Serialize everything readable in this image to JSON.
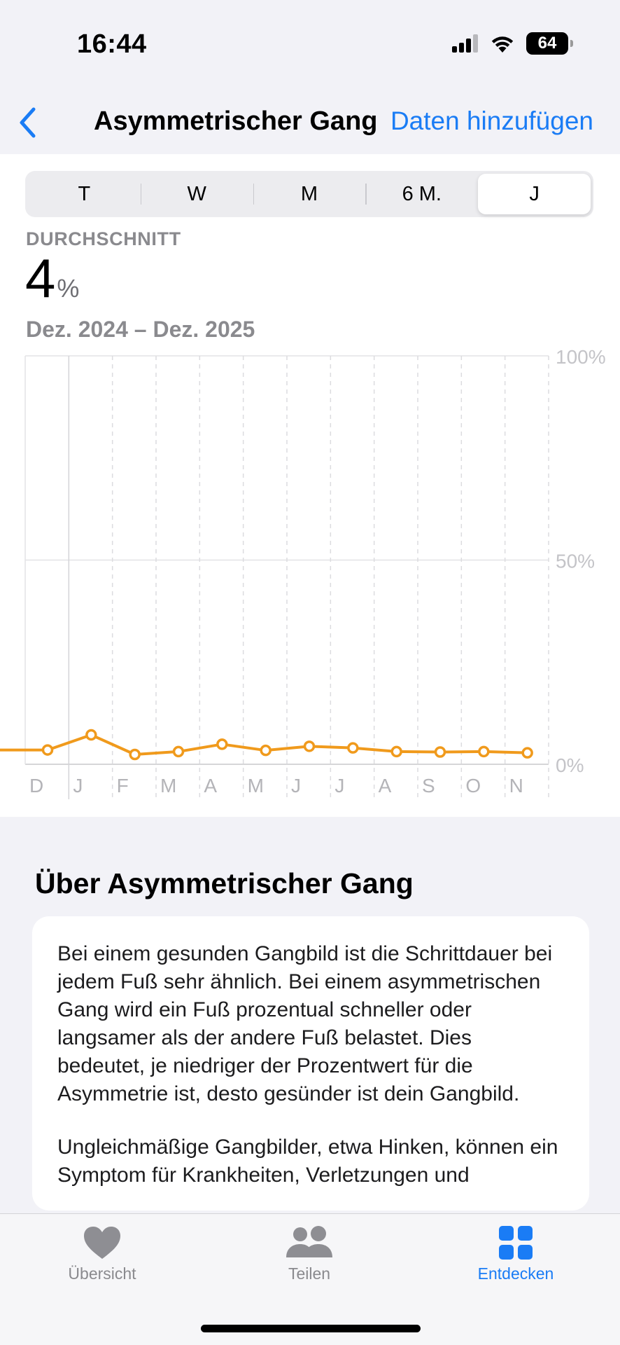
{
  "status": {
    "time": "16:44",
    "battery": "64"
  },
  "nav": {
    "back_icon": "chevron-left-icon",
    "title": "Asymmetrischer Gang",
    "action": "Daten hinzufügen"
  },
  "segments": [
    {
      "label": "T"
    },
    {
      "label": "W"
    },
    {
      "label": "M"
    },
    {
      "label": "6 M."
    },
    {
      "label": "J",
      "selected": true
    }
  ],
  "summary": {
    "label": "DURCHSCHNITT",
    "value": "4",
    "unit": "%",
    "range": "Dez. 2024 – Dez. 2025"
  },
  "chart_data": {
    "type": "line",
    "categories": [
      "D",
      "J",
      "F",
      "M",
      "A",
      "M",
      "J",
      "J",
      "A",
      "S",
      "O",
      "N"
    ],
    "series": [
      {
        "values": [
          3.5,
          7.2,
          2.4,
          3.1,
          4.9,
          3.4,
          4.4,
          4.0,
          3.1,
          3.0,
          3.1,
          2.8
        ]
      }
    ],
    "ylim": [
      0,
      100
    ],
    "yticks": [
      "100%",
      "50%",
      "0%"
    ],
    "grid": true,
    "color": "#f09a1c"
  },
  "about": {
    "title": "Über Asymmetrischer Gang",
    "paragraphs": [
      "Bei einem gesunden Gangbild ist die Schrittdauer bei jedem Fuß sehr ähnlich. Bei einem asymmetrischen Gang wird ein Fuß prozentual schneller oder langsamer als der andere Fuß belastet. Dies bedeutet, je niedriger der Prozentwert für die Asymmetrie ist, desto gesünder ist dein Gangbild.",
      "Ungleichmäßige Gangbilder, etwa Hinken, können ein Symptom für Krankheiten, Verletzungen und"
    ]
  },
  "tabs": [
    {
      "label": "Übersicht",
      "icon": "heart-icon"
    },
    {
      "label": "Teilen",
      "icon": "people-icon"
    },
    {
      "label": "Entdecken",
      "icon": "grid-icon",
      "active": true
    }
  ]
}
